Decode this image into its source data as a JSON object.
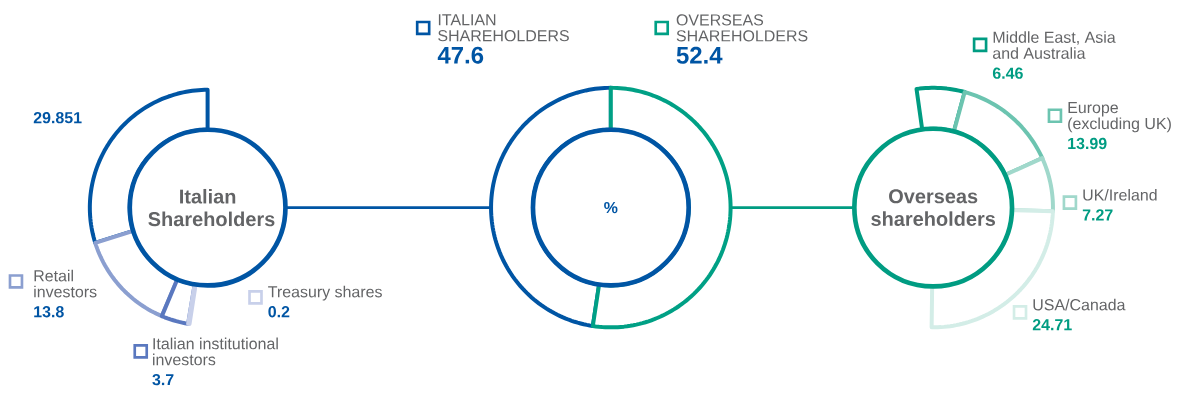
{
  "chart_data": [
    {
      "type": "donut",
      "title": "Italian Shareholders",
      "categories": [
        null,
        "Retail investors",
        "Italian institutional investors",
        "Treasury shares"
      ],
      "values": [
        29.851,
        13.8,
        3.7,
        0.2
      ],
      "colors": [
        "#0055a4",
        "#8b9fd0",
        "#5a78bf",
        "#c8d0ea"
      ],
      "data_labels": true,
      "legend": "bottom"
    },
    {
      "type": "donut",
      "title": "%",
      "categories": [
        "ITALIAN SHAREHOLDERS",
        "OVERSEAS SHAREHOLDERS"
      ],
      "values": [
        47.6,
        52.4
      ],
      "colors": [
        "#0055a4",
        "#00a085"
      ],
      "data_labels": true,
      "legend": "top"
    },
    {
      "type": "donut",
      "title": "Overseas shareholders",
      "categories": [
        "Middle East, Asia and Australia",
        "Europe (excluding UK)",
        "UK/Ireland",
        "USA/Canada"
      ],
      "values": [
        6.46,
        13.99,
        7.27,
        24.71
      ],
      "colors": [
        "#009c82",
        "#6cc4b0",
        "#a0d8cb",
        "#d3ede7"
      ],
      "data_labels": true,
      "legend": "right"
    }
  ]
}
